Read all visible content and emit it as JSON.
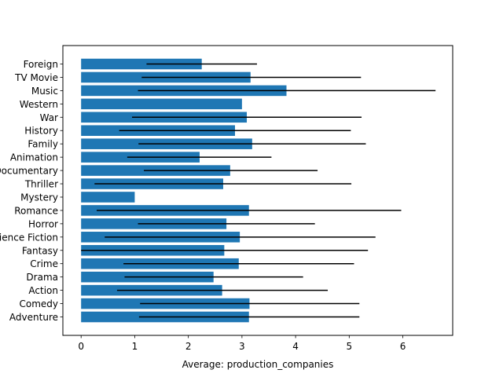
{
  "chart_data": {
    "type": "bar",
    "orientation": "horizontal",
    "title": "",
    "xlabel": "Average: production_companies",
    "ylabel": "",
    "xlim": [
      -0.34,
      6.93
    ],
    "xticks": [
      0,
      1,
      2,
      3,
      4,
      5,
      6
    ],
    "grid": false,
    "bar_color": "#1f77b4",
    "error_color": "#000000",
    "categories": [
      "Adventure",
      "Comedy",
      "Action",
      "Drama",
      "Crime",
      "Fantasy",
      "Science Fiction",
      "Horror",
      "Romance",
      "Mystery",
      "Thriller",
      "Documentary",
      "Animation",
      "Family",
      "History",
      "War",
      "Western",
      "Music",
      "TV Movie",
      "Foreign"
    ],
    "values": [
      3.13,
      3.14,
      2.63,
      2.47,
      2.94,
      2.67,
      2.96,
      2.71,
      3.13,
      1.0,
      2.65,
      2.78,
      2.21,
      3.19,
      2.87,
      3.09,
      3.0,
      3.83,
      3.16,
      2.25
    ],
    "error_low": [
      1.08,
      1.1,
      0.67,
      0.81,
      0.79,
      0.0,
      0.44,
      1.06,
      0.29,
      1.0,
      0.25,
      1.17,
      0.86,
      1.07,
      0.71,
      0.95,
      3.0,
      1.06,
      1.13,
      1.22
    ],
    "error_high": [
      5.19,
      5.19,
      4.6,
      4.14,
      5.09,
      5.35,
      5.49,
      4.36,
      5.97,
      1.0,
      5.04,
      4.41,
      3.55,
      5.31,
      5.03,
      5.23,
      3.0,
      6.61,
      5.22,
      3.28
    ]
  }
}
